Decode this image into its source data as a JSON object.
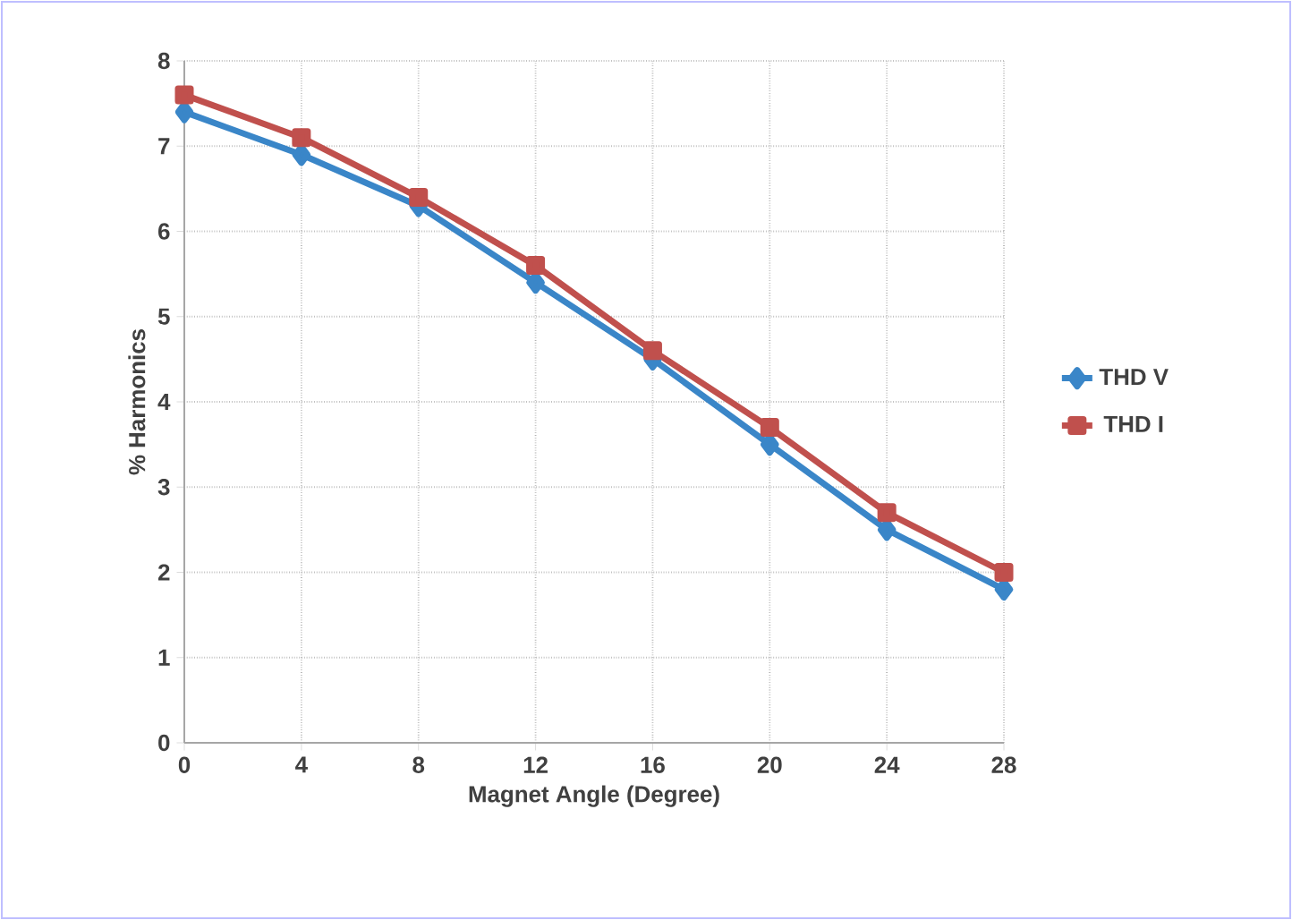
{
  "chart_data": {
    "type": "line",
    "xlabel": "Magnet Angle (Degree)",
    "ylabel": "% Harmonics",
    "x": [
      0,
      4,
      8,
      12,
      16,
      20,
      24,
      28
    ],
    "series": [
      {
        "name": "THD V",
        "color": "#3a86c8",
        "marker": "diamond",
        "values": [
          7.4,
          6.9,
          6.3,
          5.4,
          4.5,
          3.5,
          2.5,
          1.8
        ]
      },
      {
        "name": "THD I",
        "color": "#c0504d",
        "marker": "square",
        "values": [
          7.6,
          7.1,
          6.4,
          5.6,
          4.6,
          3.7,
          2.7,
          2.0
        ]
      }
    ],
    "xlim": [
      0,
      28
    ],
    "ylim": [
      0,
      8
    ],
    "xticks": [
      0,
      4,
      8,
      12,
      16,
      20,
      24,
      28
    ],
    "yticks": [
      0,
      1,
      2,
      3,
      4,
      5,
      6,
      7,
      8
    ],
    "grid": true,
    "legend": "right",
    "line_style": "solid"
  }
}
